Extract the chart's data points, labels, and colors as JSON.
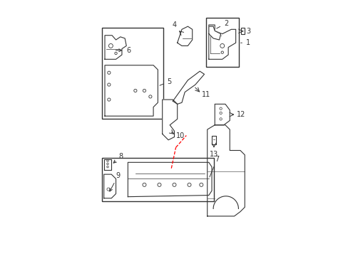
{
  "bg_color": "#ffffff",
  "line_color": "#333333",
  "red_dashes": [
    [
      [
        2.4,
        2.9
      ],
      [
        2.55,
        3.6
      ]
    ],
    [
      [
        2.55,
        3.6
      ],
      [
        2.9,
        4.0
      ]
    ]
  ]
}
